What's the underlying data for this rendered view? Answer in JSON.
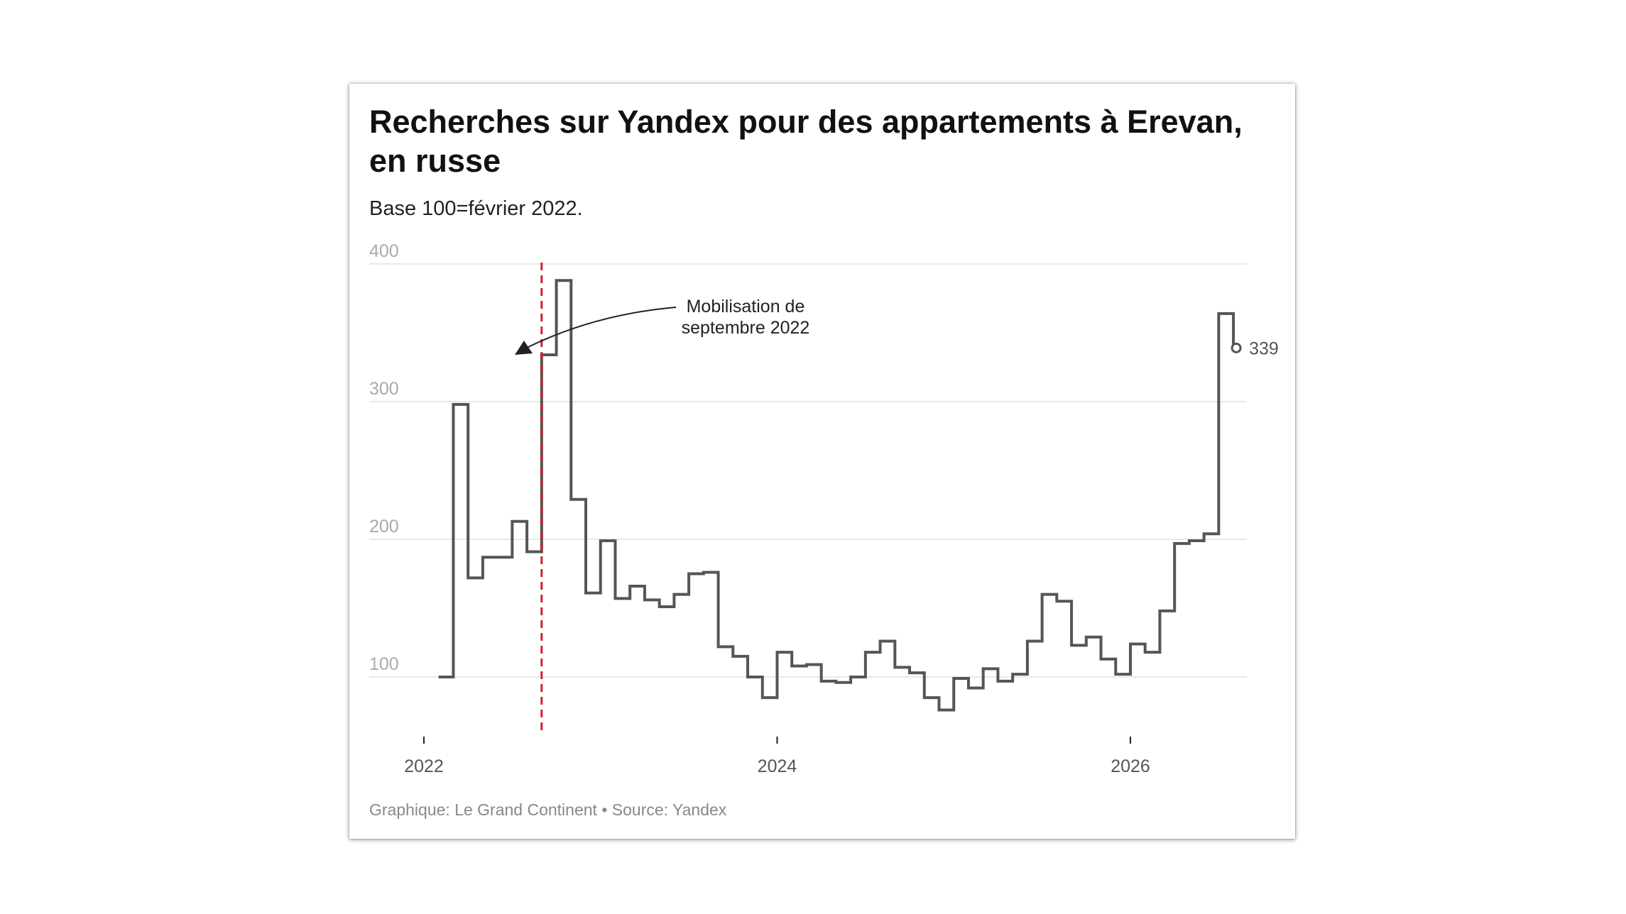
{
  "header": {
    "title": "Recherches sur Yandex pour des appartements à Erevan, en russe",
    "subtitle": "Base 100=février 2022."
  },
  "footer": {
    "credit": "Graphique: Le Grand Continent • Source: Yandex"
  },
  "colors": {
    "line": "#555555",
    "annotation_line": "#cc2233",
    "grid": "#e2e2e2",
    "axis_label": "#aaaaaa"
  },
  "chart_data": {
    "type": "line",
    "step": true,
    "title": "Recherches sur Yandex pour des appartements à Erevan, en russe",
    "subtitle": "Base 100=février 2022.",
    "xlabel": "",
    "ylabel": "",
    "ylim": [
      60,
      400
    ],
    "yticks": [
      100,
      200,
      300,
      400
    ],
    "xlim": [
      "2021-12",
      "2026-12"
    ],
    "xticks": [
      {
        "value": "2022-01",
        "label": "2022"
      },
      {
        "value": "2024-01",
        "label": "2024"
      },
      {
        "value": "2026-01",
        "label": "2026"
      }
    ],
    "grid": true,
    "series": [
      {
        "name": "",
        "start": "2022-02",
        "frequency": "month",
        "values": [
          100,
          298,
          172,
          187,
          187,
          213,
          191,
          334,
          388,
          229,
          161,
          199,
          157,
          166,
          156,
          151,
          160,
          175,
          176,
          122,
          115,
          100,
          85,
          118,
          108,
          109,
          97,
          96,
          100,
          118,
          126,
          107,
          103,
          85,
          76,
          99,
          92,
          106,
          97,
          102,
          126,
          160,
          155,
          123,
          129,
          113,
          102,
          124,
          118,
          148,
          197,
          199,
          204,
          364,
          339
        ]
      }
    ],
    "annotations": [
      {
        "type": "vline",
        "x": "2022-09",
        "label": "Mobilisation de septembre 2022"
      },
      {
        "type": "end-label",
        "value": "339"
      }
    ]
  }
}
